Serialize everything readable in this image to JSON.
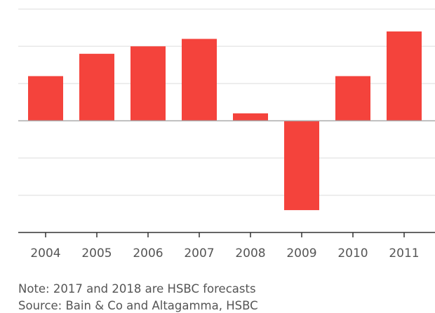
{
  "chart_data": {
    "type": "bar",
    "title": "",
    "xlabel": "",
    "ylabel": "",
    "categories": [
      "2004",
      "2005",
      "2006",
      "2007",
      "2008",
      "2009",
      "2010",
      "2011"
    ],
    "values": [
      6,
      9,
      10,
      11,
      1,
      -12,
      6,
      12
    ],
    "ylim": [
      -15,
      15
    ],
    "gridlines": [
      15,
      10,
      5,
      0,
      -5,
      -10,
      -15
    ],
    "bar_color": "#f4433c",
    "grid": true,
    "legend": "none"
  },
  "notes": {
    "note": "Note: 2017 and 2018 are HSBC forecasts",
    "source": "Source: Bain & Co and Altagamma, HSBC"
  }
}
